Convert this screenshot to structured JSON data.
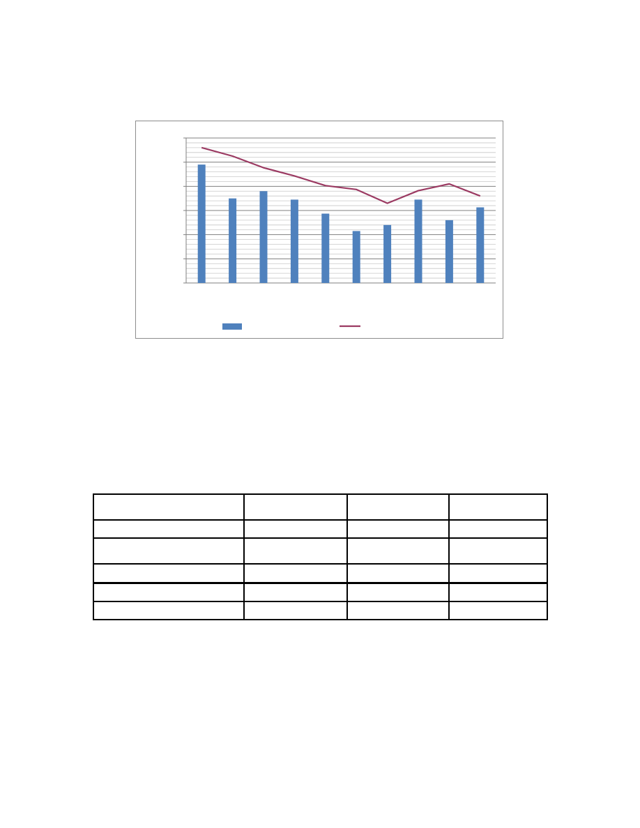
{
  "chart_data": {
    "type": "bar",
    "title": "",
    "xlabel": "",
    "ylabel": "",
    "grid": true,
    "legend": "bottom",
    "ylim": [
      0,
      6
    ],
    "major_tick_step": 1,
    "minor_tick_step": 0.2,
    "categories": [
      "",
      "",
      "",
      "",
      "",
      "",
      "",
      "",
      "",
      ""
    ],
    "series": [
      {
        "type": "bar",
        "color": "#4f81bd",
        "values": [
          4.9,
          3.5,
          3.8,
          3.45,
          2.87,
          2.15,
          2.4,
          3.45,
          2.6,
          3.13
        ]
      },
      {
        "type": "line",
        "color": "#9b3a62",
        "values": [
          5.6,
          5.25,
          4.77,
          4.43,
          4.03,
          3.87,
          3.3,
          3.82,
          4.1,
          3.6
        ]
      }
    ]
  },
  "table": {
    "rows": [
      [
        "",
        "",
        "",
        ""
      ],
      [
        "",
        "",
        "",
        ""
      ],
      [
        "",
        "",
        "",
        ""
      ],
      [
        "",
        "",
        "",
        ""
      ],
      [
        "",
        "",
        "",
        ""
      ],
      [
        "",
        "",
        "",
        ""
      ]
    ]
  }
}
